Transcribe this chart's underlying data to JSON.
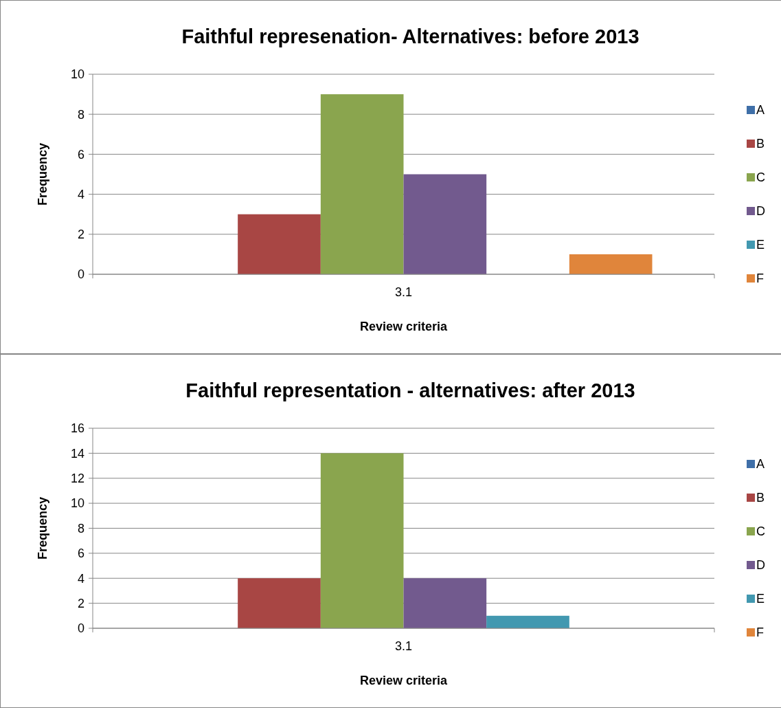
{
  "chart_data": [
    {
      "type": "bar",
      "title": "Faithful represenation- Alternatives: before 2013",
      "xlabel": "Review criteria",
      "ylabel": "Frequency",
      "categories": [
        "3.1"
      ],
      "series": [
        {
          "name": "A",
          "color": "#3f6fa8",
          "values": [
            0
          ]
        },
        {
          "name": "B",
          "color": "#a84644",
          "values": [
            3
          ]
        },
        {
          "name": "C",
          "color": "#8aa54e",
          "values": [
            9
          ]
        },
        {
          "name": "D",
          "color": "#725a8e",
          "values": [
            5
          ]
        },
        {
          "name": "E",
          "color": "#4298b0",
          "values": [
            0
          ]
        },
        {
          "name": "F",
          "color": "#e0853b",
          "values": [
            1
          ]
        }
      ],
      "ylim": [
        0,
        10
      ],
      "yticks": [
        0,
        2,
        4,
        6,
        8,
        10
      ],
      "grid": "y",
      "legend": "right"
    },
    {
      "type": "bar",
      "title": "Faithful representation - alternatives: after 2013",
      "xlabel": "Review criteria",
      "ylabel": "Frequency",
      "categories": [
        "3.1"
      ],
      "series": [
        {
          "name": "A",
          "color": "#3f6fa8",
          "values": [
            0
          ]
        },
        {
          "name": "B",
          "color": "#a84644",
          "values": [
            4
          ]
        },
        {
          "name": "C",
          "color": "#8aa54e",
          "values": [
            14
          ]
        },
        {
          "name": "D",
          "color": "#725a8e",
          "values": [
            4
          ]
        },
        {
          "name": "E",
          "color": "#4298b0",
          "values": [
            1
          ]
        },
        {
          "name": "F",
          "color": "#e0853b",
          "values": [
            0
          ]
        }
      ],
      "ylim": [
        0,
        16
      ],
      "yticks": [
        0,
        2,
        4,
        6,
        8,
        10,
        12,
        14,
        16
      ],
      "grid": "y",
      "legend": "right"
    }
  ]
}
